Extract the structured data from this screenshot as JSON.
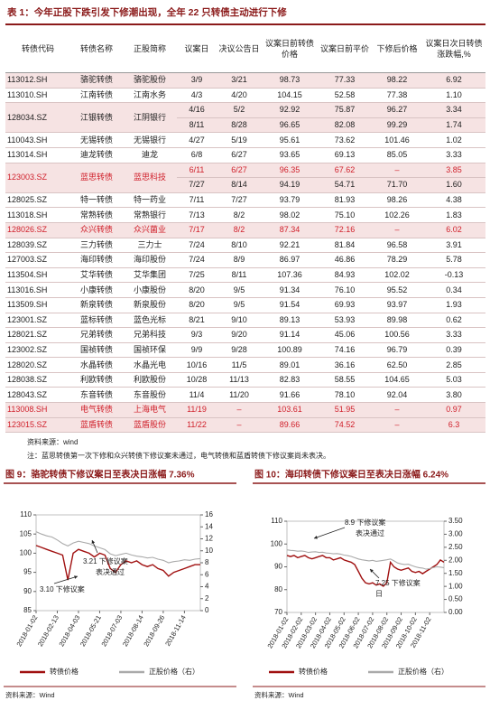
{
  "table": {
    "title": "表 1：今年正股下跌引发下修潮出现，全年 22 只转债主动进行下修",
    "columns": [
      "转债代码",
      "转债名称",
      "正股简称",
      "议案日",
      "决议公告日",
      "议案日前转债价格",
      "议案日前平价",
      "下修后价格",
      "议案日次日转债涨跌幅,%"
    ],
    "rows": [
      {
        "code": "113012.SH",
        "name": "骆驼转债",
        "stock": "骆驼股份",
        "entries": [
          [
            "3/9",
            "3/21",
            "98.73",
            "77.33",
            "98.22",
            "6.92"
          ]
        ]
      },
      {
        "code": "113010.SH",
        "name": "江南转债",
        "stock": "江南水务",
        "entries": [
          [
            "4/3",
            "4/20",
            "104.15",
            "52.58",
            "77.38",
            "1.10"
          ]
        ]
      },
      {
        "code": "128034.SZ",
        "name": "江银转债",
        "stock": "江阴银行",
        "entries": [
          [
            "4/16",
            "5/2",
            "92.92",
            "75.87",
            "96.27",
            "3.34"
          ],
          [
            "8/11",
            "8/28",
            "96.65",
            "82.08",
            "99.29",
            "1.74"
          ]
        ]
      },
      {
        "code": "110043.SH",
        "name": "无锡转债",
        "stock": "无锡银行",
        "entries": [
          [
            "4/27",
            "5/19",
            "95.61",
            "73.62",
            "101.46",
            "1.02"
          ]
        ]
      },
      {
        "code": "113014.SH",
        "name": "迪龙转债",
        "stock": "迪龙",
        "entries": [
          [
            "6/8",
            "6/27",
            "93.65",
            "69.13",
            "85.05",
            "3.33"
          ]
        ]
      },
      {
        "code": "123003.SZ",
        "name": "蓝思转债",
        "stock": "蓝思科技",
        "entries": [
          [
            "6/11",
            "6/27",
            "96.35",
            "67.62",
            "–",
            "3.85"
          ],
          [
            "7/27",
            "8/14",
            "94.19",
            "54.71",
            "71.70",
            "1.60"
          ]
        ]
      },
      {
        "code": "128025.SZ",
        "name": "特一转债",
        "stock": "特一药业",
        "entries": [
          [
            "7/11",
            "7/27",
            "93.79",
            "81.93",
            "98.26",
            "4.38"
          ]
        ]
      },
      {
        "code": "113018.SH",
        "name": "常熟转债",
        "stock": "常熟银行",
        "entries": [
          [
            "7/13",
            "8/2",
            "98.02",
            "75.10",
            "102.26",
            "1.83"
          ]
        ]
      },
      {
        "code": "128026.SZ",
        "name": "众兴转债",
        "stock": "众兴菌业",
        "entries": [
          [
            "7/17",
            "8/2",
            "87.34",
            "72.16",
            "–",
            "6.02"
          ]
        ]
      },
      {
        "code": "128039.SZ",
        "name": "三力转债",
        "stock": "三力士",
        "entries": [
          [
            "7/24",
            "8/10",
            "92.21",
            "81.84",
            "96.58",
            "3.91"
          ]
        ]
      },
      {
        "code": "127003.SZ",
        "name": "海印转债",
        "stock": "海印股份",
        "entries": [
          [
            "7/24",
            "8/9",
            "86.97",
            "46.86",
            "78.29",
            "5.78"
          ]
        ]
      },
      {
        "code": "113504.SH",
        "name": "艾华转债",
        "stock": "艾华集团",
        "entries": [
          [
            "7/25",
            "8/11",
            "107.36",
            "84.93",
            "102.02",
            "-0.13"
          ]
        ]
      },
      {
        "code": "113016.SH",
        "name": "小康转债",
        "stock": "小康股份",
        "entries": [
          [
            "8/20",
            "9/5",
            "91.34",
            "76.10",
            "95.52",
            "0.34"
          ]
        ]
      },
      {
        "code": "113509.SH",
        "name": "新泉转债",
        "stock": "新泉股份",
        "entries": [
          [
            "8/20",
            "9/5",
            "91.54",
            "69.93",
            "93.97",
            "1.93"
          ]
        ]
      },
      {
        "code": "123001.SZ",
        "name": "蓝标转债",
        "stock": "蓝色光标",
        "entries": [
          [
            "8/21",
            "9/10",
            "89.13",
            "53.93",
            "89.98",
            "0.62"
          ]
        ]
      },
      {
        "code": "128021.SZ",
        "name": "兄弟转债",
        "stock": "兄弟科技",
        "entries": [
          [
            "9/3",
            "9/20",
            "91.14",
            "45.06",
            "100.56",
            "3.33"
          ]
        ]
      },
      {
        "code": "123002.SZ",
        "name": "国祯转债",
        "stock": "国祯环保",
        "entries": [
          [
            "9/9",
            "9/28",
            "100.89",
            "74.16",
            "96.79",
            "0.39"
          ]
        ]
      },
      {
        "code": "128020.SZ",
        "name": "水晶转债",
        "stock": "水晶光电",
        "entries": [
          [
            "10/16",
            "11/5",
            "89.01",
            "36.16",
            "62.50",
            "2.85"
          ]
        ]
      },
      {
        "code": "128038.SZ",
        "name": "利欧转债",
        "stock": "利欧股份",
        "entries": [
          [
            "10/28",
            "11/13",
            "82.83",
            "58.55",
            "104.65",
            "5.03"
          ]
        ]
      },
      {
        "code": "128043.SZ",
        "name": "东音转债",
        "stock": "东音股份",
        "entries": [
          [
            "11/4",
            "11/20",
            "91.66",
            "78.10",
            "92.04",
            "3.80"
          ]
        ]
      },
      {
        "code": "113008.SH",
        "name": "电气转债",
        "stock": "上海电气",
        "entries": [
          [
            "11/19",
            "–",
            "103.61",
            "51.95",
            "–",
            "0.97"
          ]
        ]
      },
      {
        "code": "123015.SZ",
        "name": "蓝盾转债",
        "stock": "蓝盾股份",
        "entries": [
          [
            "11/22",
            "–",
            "89.66",
            "74.52",
            "–",
            "6.3"
          ]
        ]
      }
    ]
  },
  "source": "资料来源：wind",
  "note": "注：蓝思转债第一次下修和众兴转债下修议案未通过，电气转债和蓝盾转债下修议案尚未表决。",
  "chart_data": [
    {
      "type": "line",
      "title": "图 9：骆驼转债下修议案日至表决日涨幅 7.36%",
      "categories": [
        "2018-01-02",
        null,
        null,
        null,
        "2018-02-13",
        null,
        null,
        null,
        "2018-04-03",
        null,
        null,
        null,
        "2018-05-21",
        null,
        null,
        null,
        "2018-07-03",
        null,
        null,
        null,
        "2018-08-14",
        null,
        null,
        null,
        "2018-09-26",
        null,
        null,
        null,
        "2018-11-14",
        null,
        null,
        null
      ],
      "series": [
        {
          "name": "转债价格",
          "color": "#a01010",
          "axis": "y",
          "values": [
            102,
            101.5,
            101,
            100.5,
            100,
            99.5,
            93,
            100,
            101,
            100.5,
            100,
            99,
            100,
            99.5,
            96,
            95,
            97,
            98,
            97.5,
            98,
            97,
            96.5,
            97,
            96,
            95.5,
            94,
            95,
            95.5,
            96,
            96.5,
            97,
            97
          ]
        },
        {
          "name": "正股价格（右）",
          "color": "#aaaaaa",
          "axis": "y2",
          "values": [
            13.2,
            12.8,
            12.5,
            12.3,
            11.8,
            11.2,
            10.8,
            11.3,
            11.6,
            11.4,
            11.2,
            10.8,
            10.5,
            10.2,
            9.5,
            9.2,
            9.4,
            9.6,
            9.3,
            9.1,
            9.0,
            8.8,
            8.9,
            8.6,
            8.4,
            8.0,
            8.2,
            8.3,
            8.5,
            8.4,
            8.6,
            8.7
          ]
        }
      ],
      "ylim": [
        85,
        110
      ],
      "yticks": [
        85,
        90,
        95,
        100,
        105,
        110
      ],
      "y2lim": [
        0,
        16
      ],
      "y2ticks": [
        0,
        2,
        4,
        6,
        8,
        10,
        12,
        14,
        16
      ],
      "annotations": [
        {
          "lines": [
            "3.21 下修议案",
            "表决通过"
          ]
        },
        {
          "lines": [
            "3.10 下修议案"
          ]
        }
      ],
      "source": "资料来源：Wind"
    },
    {
      "type": "line",
      "title": "图 10：海印转债下修议案日至表决日涨幅 6.24%",
      "categories": [
        "2018-01-02",
        null,
        null,
        null,
        "2018-02-02",
        null,
        null,
        null,
        "2018-03-02",
        null,
        null,
        null,
        "2018-04-02",
        null,
        null,
        null,
        "2018-05-02",
        null,
        null,
        null,
        "2018-06-02",
        null,
        null,
        null,
        "2018-07-02",
        null,
        null,
        null,
        "2018-08-02",
        null,
        null,
        null,
        "2018-09-02",
        null,
        null,
        null,
        "2018-10-02",
        null,
        null,
        null,
        "2018-11-02",
        null,
        null,
        null,
        null
      ],
      "series": [
        {
          "name": "转债价格",
          "color": "#a01010",
          "axis": "y",
          "values": [
            95,
            94.5,
            95,
            94,
            94.5,
            95,
            94,
            93.5,
            94,
            94.5,
            95,
            94,
            94,
            93,
            93.5,
            94,
            93,
            92.5,
            92,
            91,
            88,
            85,
            83,
            82.5,
            83,
            82,
            82.5,
            81.5,
            83,
            92,
            90,
            89,
            88.5,
            89,
            89.5,
            88,
            87.5,
            88,
            87,
            88,
            89,
            90,
            91,
            93,
            92
          ]
        },
        {
          "name": "正股价格（右）",
          "color": "#aaaaaa",
          "axis": "y2",
          "values": [
            2.4,
            2.38,
            2.37,
            2.35,
            2.36,
            2.34,
            2.3,
            2.32,
            2.33,
            2.3,
            2.31,
            2.28,
            2.27,
            2.25,
            2.26,
            2.24,
            2.2,
            2.18,
            2.15,
            2.1,
            2.05,
            2.02,
            2.0,
            1.98,
            2.0,
            1.96,
            1.98,
            2.0,
            2.02,
            2.05,
            1.98,
            1.9,
            1.86,
            1.84,
            1.85,
            1.8,
            1.75,
            1.72,
            1.7,
            1.66,
            1.68,
            1.72,
            1.75,
            1.74,
            1.72
          ]
        }
      ],
      "ylim": [
        70,
        110
      ],
      "yticks": [
        70,
        80,
        90,
        100,
        110
      ],
      "y2lim": [
        0,
        3.5
      ],
      "y2ticks": [
        {
          "value": 0,
          "label": "0.00"
        },
        {
          "value": 0.5,
          "label": "0.50"
        },
        {
          "value": 1,
          "label": "1.00"
        },
        {
          "value": 1.5,
          "label": "1.50"
        },
        {
          "value": 2,
          "label": "2.00"
        },
        {
          "value": 2.5,
          "label": "2.50"
        },
        {
          "value": 3,
          "label": "3.00"
        },
        {
          "value": 3.5,
          "label": "3.50"
        }
      ],
      "annotations": [
        {
          "lines": [
            "8.9 下修议案",
            "表决通过"
          ]
        },
        {
          "lines": [
            "7.25 下修议案",
            "日"
          ]
        }
      ],
      "source": "资料来源：Wind"
    }
  ]
}
